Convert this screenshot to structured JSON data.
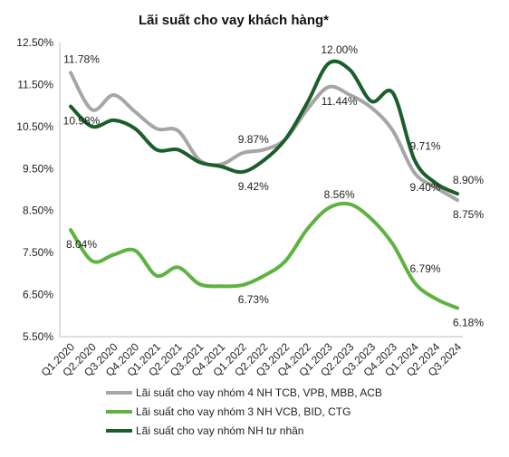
{
  "chart_data": {
    "type": "line",
    "title": "Lãi suất cho vay khách hàng*",
    "xlabel": "",
    "ylabel": "",
    "ylim": [
      5.5,
      12.5
    ],
    "y_ticks": [
      "12.50%",
      "11.50%",
      "10.50%",
      "9.50%",
      "8.50%",
      "7.50%",
      "6.50%",
      "5.50%"
    ],
    "y_tick_values": [
      12.5,
      11.5,
      10.5,
      9.5,
      8.5,
      7.5,
      6.5,
      5.5
    ],
    "categories": [
      "Q1.2020",
      "Q2.2020",
      "Q3.2020",
      "Q4.2020",
      "Q1.2021",
      "Q2.2021",
      "Q3.2021",
      "Q4.2021",
      "Q1.2022",
      "Q2.2022",
      "Q3.2022",
      "Q4.2022",
      "Q1.2023",
      "Q2.2023",
      "Q3.2023",
      "Q4.2023",
      "Q1.2024",
      "Q2.2024",
      "Q3.2024"
    ],
    "grid": false,
    "legend_position": "bottom",
    "series": [
      {
        "name": "Lãi suất cho vay nhóm 4 NH TCB, VPB, MBB, ACB",
        "color": "#a6a6a6",
        "values": [
          11.78,
          10.9,
          11.25,
          10.85,
          10.45,
          10.4,
          9.7,
          9.6,
          9.87,
          9.95,
          10.2,
          10.9,
          11.44,
          11.25,
          10.95,
          10.4,
          9.4,
          9.05,
          8.75
        ],
        "labels": [
          {
            "index": 0,
            "text": "11.78%",
            "pos": "above"
          },
          {
            "index": 8,
            "text": "9.87%",
            "pos": "above"
          },
          {
            "index": 12,
            "text": "11.44%",
            "pos": "below"
          },
          {
            "index": 16,
            "text": "9.40%",
            "pos": "below"
          },
          {
            "index": 18,
            "text": "8.75%",
            "pos": "below"
          }
        ]
      },
      {
        "name": "Lãi suất cho vay nhóm 3 NH VCB, BID, CTG",
        "color": "#5db33f",
        "values": [
          8.04,
          7.3,
          7.45,
          7.55,
          6.95,
          7.15,
          6.75,
          6.7,
          6.73,
          6.95,
          7.3,
          8.05,
          8.56,
          8.65,
          8.3,
          7.7,
          6.79,
          6.4,
          6.18
        ],
        "labels": [
          {
            "index": 0,
            "text": "8.04%",
            "pos": "below"
          },
          {
            "index": 8,
            "text": "6.73%",
            "pos": "below"
          },
          {
            "index": 12,
            "text": "8.56%",
            "pos": "above"
          },
          {
            "index": 16,
            "text": "6.79%",
            "pos": "above"
          },
          {
            "index": 18,
            "text": "6.18%",
            "pos": "below"
          }
        ]
      },
      {
        "name": "Lãi suất cho vay nhóm NH tư nhân",
        "color": "#1a5e2b",
        "values": [
          10.98,
          10.5,
          10.65,
          10.45,
          9.95,
          9.95,
          9.65,
          9.55,
          9.42,
          9.7,
          10.2,
          11.05,
          12.0,
          11.85,
          11.1,
          11.3,
          9.71,
          9.15,
          8.9
        ],
        "labels": [
          {
            "index": 0,
            "text": "10.98%",
            "pos": "below"
          },
          {
            "index": 8,
            "text": "9.42%",
            "pos": "below"
          },
          {
            "index": 12,
            "text": "12.00%",
            "pos": "above"
          },
          {
            "index": 16,
            "text": "9.71%",
            "pos": "above"
          },
          {
            "index": 18,
            "text": "8.90%",
            "pos": "above"
          }
        ]
      }
    ]
  }
}
